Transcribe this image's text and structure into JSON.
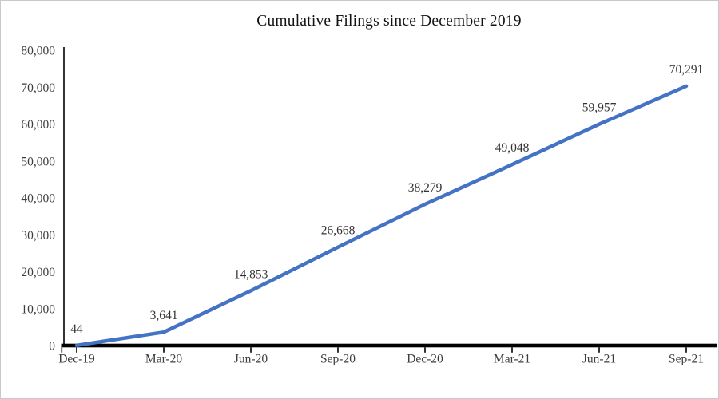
{
  "window": {
    "background": "#ffffff",
    "border_color": "#c9c9c9"
  },
  "chart_data": {
    "type": "line",
    "title": "Cumulative Filings since December 2019",
    "categories": [
      "Dec-19",
      "Mar-20",
      "Jun-20",
      "Sep-20",
      "Dec-20",
      "Mar-21",
      "Jun-21",
      "Sep-21"
    ],
    "series": [
      {
        "values": [
          44,
          3641,
          14853,
          26668,
          38279,
          49048,
          59957,
          70291
        ],
        "color": "#4472C4"
      }
    ],
    "data_labels": [
      "44",
      "3,641",
      "14,853",
      "26,668",
      "38,279",
      "49,048",
      "59,957",
      "70,291"
    ],
    "ylim": [
      0,
      80000
    ],
    "ytick_interval": 10000,
    "ytick_labels": [
      "0",
      "10,000",
      "20,000",
      "30,000",
      "40,000",
      "50,000",
      "60,000",
      "70,000",
      "80,000"
    ],
    "grid": "off",
    "legend": "none",
    "axis_color": "#000000",
    "tick_label_color": "#3d3d3d",
    "data_label_color": "#333333"
  }
}
